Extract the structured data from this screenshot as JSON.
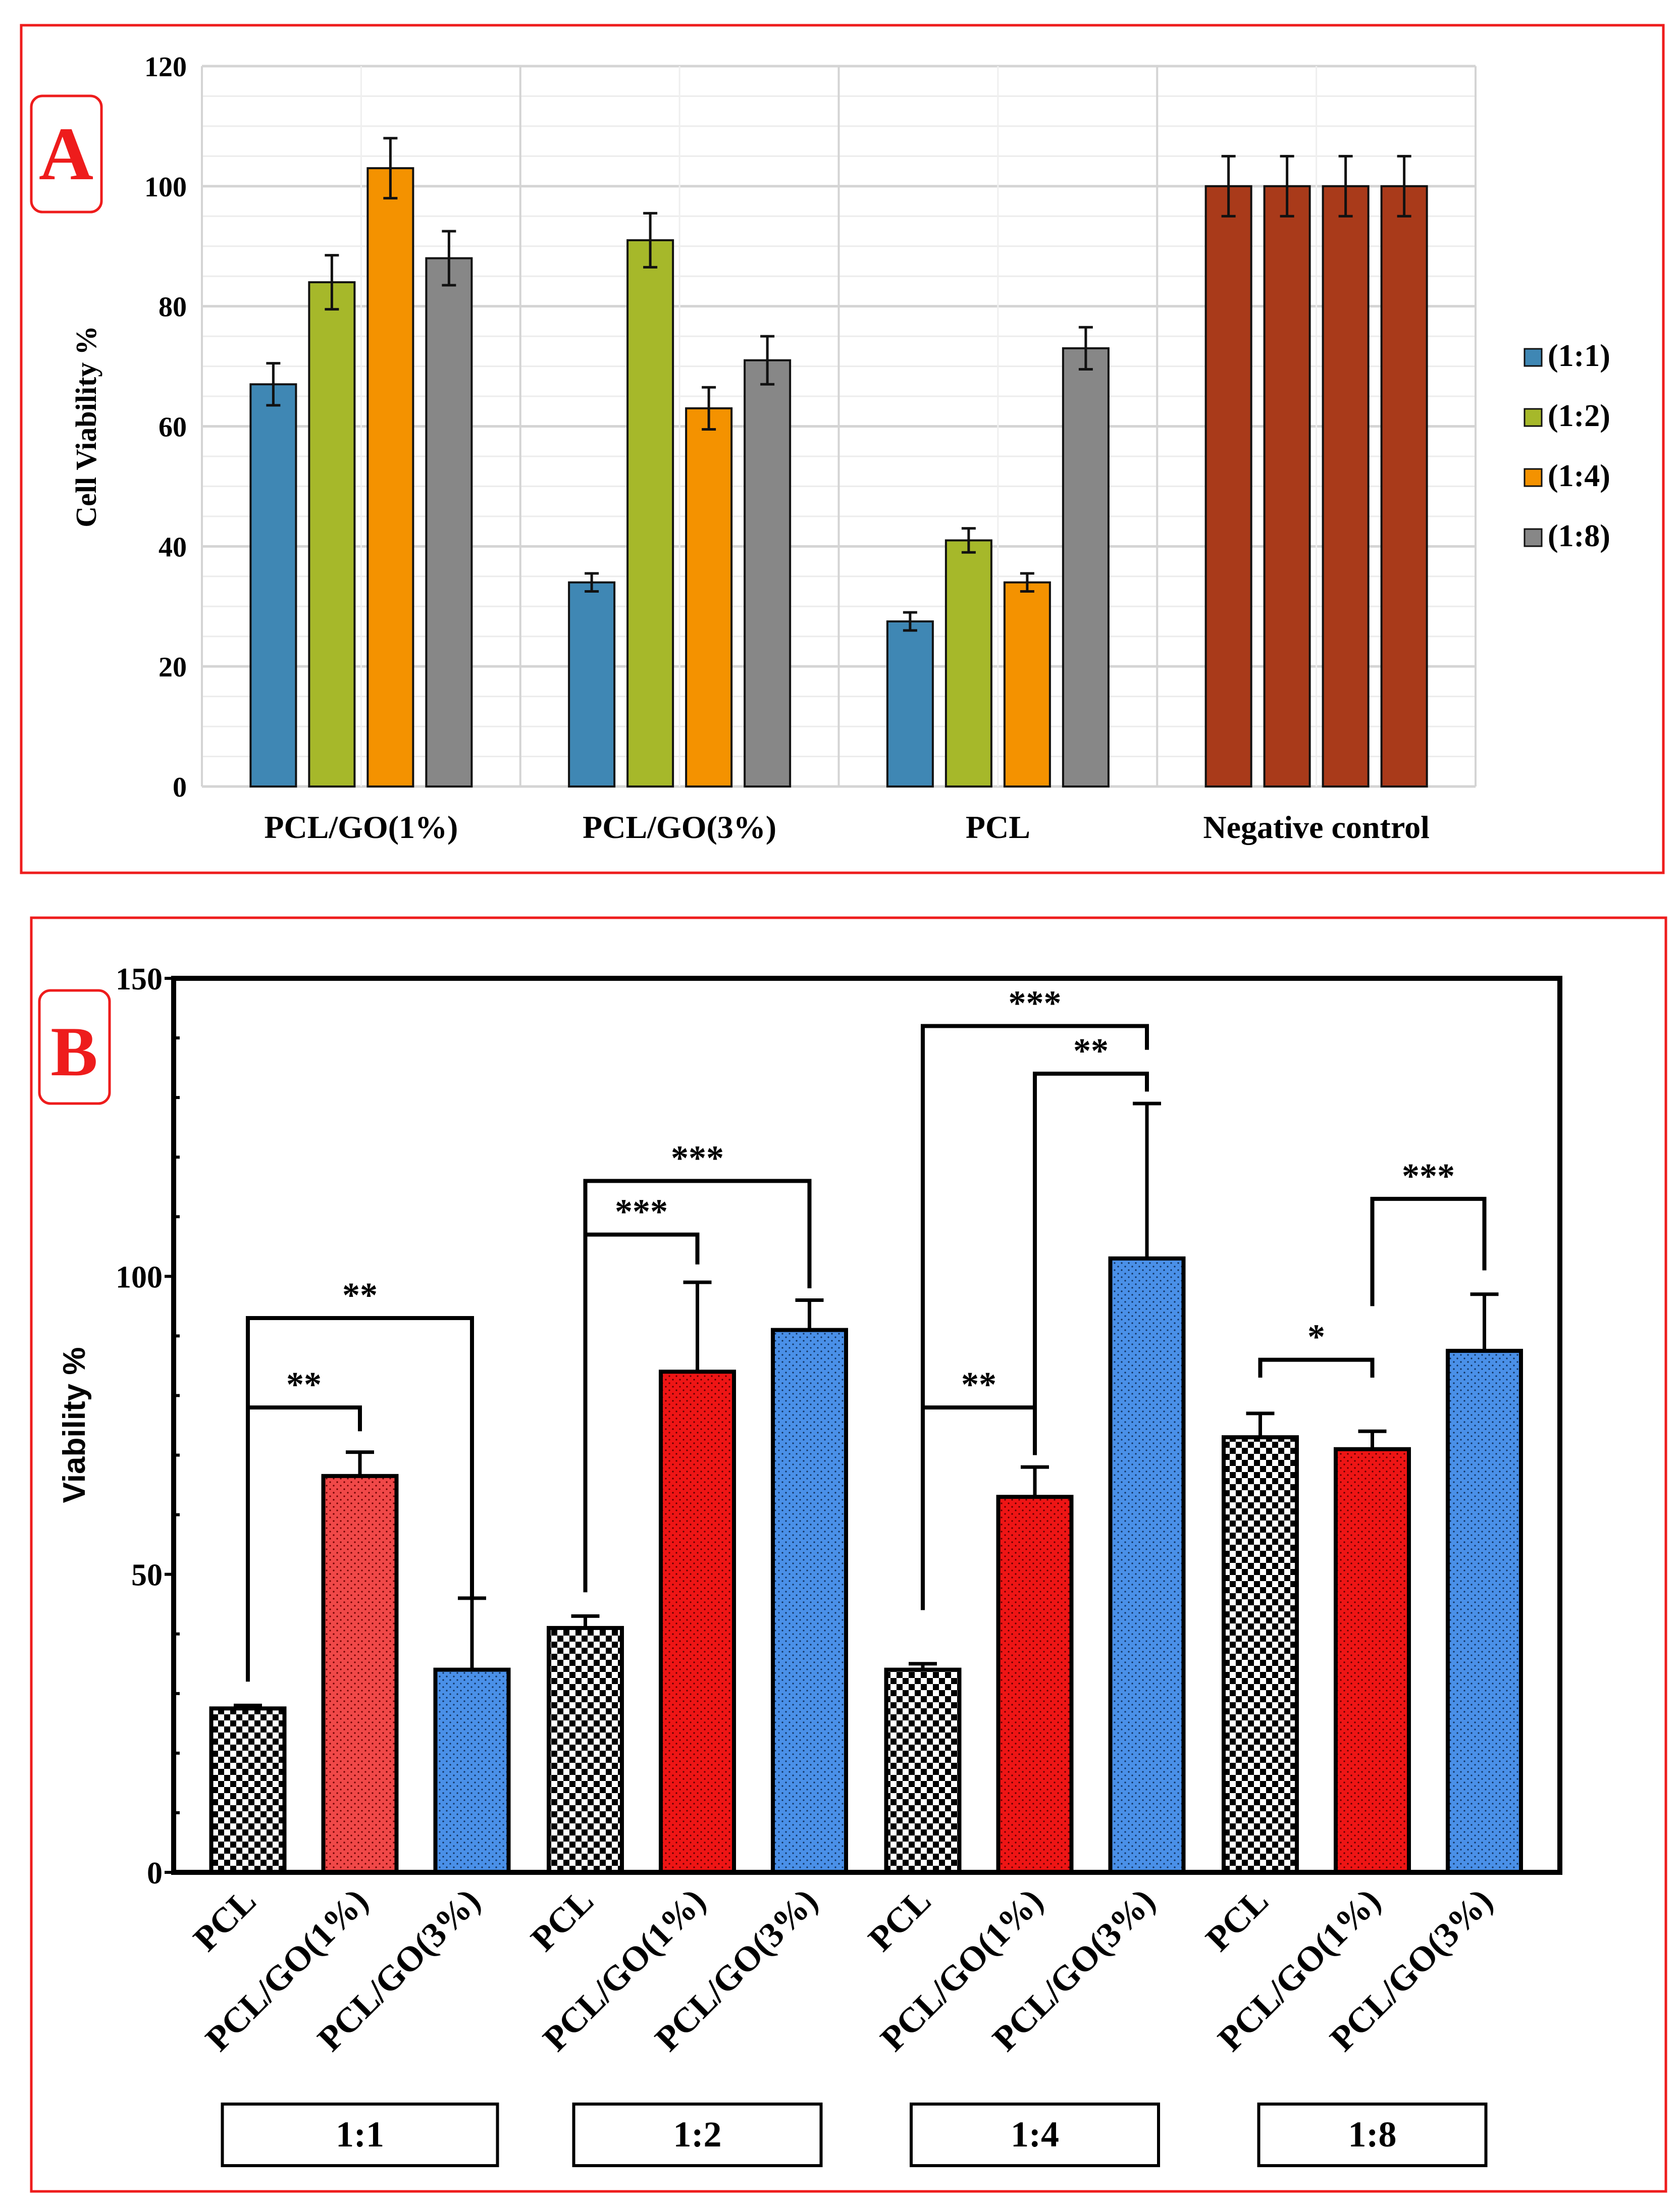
{
  "chart_data": [
    {
      "panel": "A",
      "type": "bar",
      "ylabel": "Cell Viability %",
      "xlabel": "",
      "ylim": [
        0,
        120
      ],
      "yticks": [
        "0",
        "20",
        "40",
        "60",
        "80",
        "100",
        "120"
      ],
      "grid": true,
      "legend_position": "right",
      "categories": [
        "PCL/GO(1%)",
        "PCL/GO(3%)",
        "PCL",
        "Negative control"
      ],
      "series": [
        {
          "name": "(1:1)",
          "color": "#3f87b4",
          "values": [
            67,
            34,
            27.5,
            100
          ],
          "errors": [
            3.5,
            1.5,
            1.5,
            5
          ]
        },
        {
          "name": "(1:2)",
          "color": "#a6b82a",
          "values": [
            84,
            91,
            41,
            100
          ],
          "errors": [
            4.5,
            4.5,
            2,
            5
          ]
        },
        {
          "name": "(1:4)",
          "color": "#f49200",
          "values": [
            103,
            63,
            34,
            100
          ],
          "errors": [
            5,
            3.5,
            1.5,
            5
          ]
        },
        {
          "name": "(1:8)",
          "color": "#878787",
          "values": [
            88,
            71,
            73,
            100
          ],
          "errors": [
            4.5,
            4,
            3.5,
            5
          ]
        }
      ],
      "control_color": "#a93a1a"
    },
    {
      "panel": "B",
      "type": "bar",
      "ylabel": "Viability %",
      "xlabel": "",
      "ylim": [
        0,
        150
      ],
      "yticks": [
        "0",
        "50",
        "100",
        "150"
      ],
      "grid": false,
      "groups": [
        {
          "label": "1:1",
          "bars": [
            {
              "name": "PCL",
              "value": 27.5,
              "error": 0.5,
              "fill": "check"
            },
            {
              "name": "PCL/GO(1%)",
              "value": 66.5,
              "error": 4,
              "fill": "red-light"
            },
            {
              "name": "PCL/GO(3%)",
              "value": 34,
              "error": 12,
              "fill": "blue"
            }
          ],
          "brackets": [
            {
              "from": 0,
              "to": 1,
              "level": 78,
              "left_end": 32,
              "right_end": 74,
              "label": "**"
            },
            {
              "from": 0,
              "to": 2,
              "level": 93,
              "left_end": 32,
              "right_end": 46,
              "label": "**"
            }
          ]
        },
        {
          "label": "1:2",
          "bars": [
            {
              "name": "PCL",
              "value": 41,
              "error": 2,
              "fill": "check"
            },
            {
              "name": "PCL/GO(1%)",
              "value": 84,
              "error": 15,
              "fill": "red"
            },
            {
              "name": "PCL/GO(3%)",
              "value": 91,
              "error": 5,
              "fill": "blue"
            }
          ],
          "brackets": [
            {
              "from": 0,
              "to": 1,
              "level": 107,
              "left_end": 47,
              "right_end": 102,
              "label": "***"
            },
            {
              "from": 0,
              "to": 2,
              "level": 116,
              "left_end": 47,
              "right_end": 98,
              "label": "***"
            }
          ]
        },
        {
          "label": "1:4",
          "bars": [
            {
              "name": "PCL",
              "value": 34,
              "error": 1,
              "fill": "check"
            },
            {
              "name": "PCL/GO(1%)",
              "value": 63,
              "error": 5,
              "fill": "red"
            },
            {
              "name": "PCL/GO(3%)",
              "value": 103,
              "error": 26,
              "fill": "blue"
            }
          ],
          "brackets": [
            {
              "from": 0,
              "to": 1,
              "level": 78,
              "left_end": 44,
              "right_end": 70,
              "label": "**"
            },
            {
              "from": 1,
              "to": 2,
              "level": 134,
              "left_end": 78,
              "right_end": 131,
              "label": "**"
            },
            {
              "from": 0,
              "to": 2,
              "level": 142,
              "left_end": 44,
              "right_end": 138,
              "label": "***"
            }
          ]
        },
        {
          "label": "1:8",
          "bars": [
            {
              "name": "PCL",
              "value": 73,
              "error": 4,
              "fill": "check"
            },
            {
              "name": "PCL/GO(1%)",
              "value": 71,
              "error": 3,
              "fill": "red"
            },
            {
              "name": "PCL/GO(3%)",
              "value": 87.5,
              "error": 9.5,
              "fill": "blue"
            }
          ],
          "brackets": [
            {
              "from": 0,
              "to": 1,
              "level": 86,
              "left_end": 83,
              "right_end": 83,
              "label": "*"
            },
            {
              "from": 1,
              "to": 2,
              "level": 113,
              "left_end": 95,
              "right_end": 101,
              "label": "***"
            }
          ]
        }
      ],
      "colors": {
        "red": "#ee1515",
        "red-light": "#f04848",
        "blue": "#4a90e8"
      }
    }
  ],
  "panel_labels": {
    "a": "A",
    "b": "B"
  },
  "frame_color": "#ee1c1c"
}
